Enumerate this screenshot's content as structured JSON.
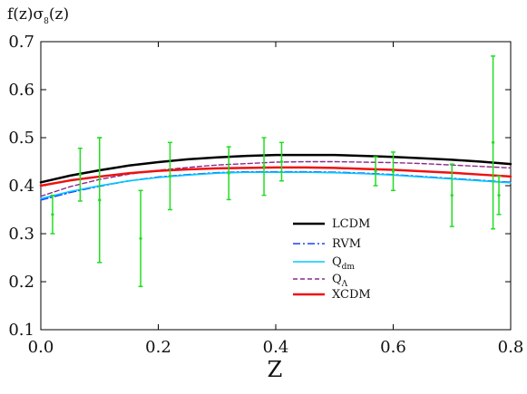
{
  "chart_data": {
    "type": "line",
    "title": "",
    "ylabel": "f(z)σ_8(z)",
    "ylabel_parts": {
      "prefix": "f(z)σ",
      "sub": "8",
      "suffix": "(z)"
    },
    "xlabel": "Z",
    "xlim": [
      0.0,
      0.8
    ],
    "ylim": [
      0.1,
      0.7
    ],
    "x_ticks": [
      "0.0",
      "0.2",
      "0.4",
      "0.6",
      "0.8"
    ],
    "y_ticks": [
      "0.1",
      "0.2",
      "0.3",
      "0.4",
      "0.5",
      "0.6",
      "0.7"
    ],
    "grid": false,
    "legend_position": "lower-center",
    "legend": [
      {
        "main": "LCDM",
        "sub": ""
      },
      {
        "main": "RVM",
        "sub": ""
      },
      {
        "main": "Q",
        "sub": "dm"
      },
      {
        "main": "Q",
        "sub": "Λ"
      },
      {
        "main": "XCDM",
        "sub": ""
      }
    ],
    "series": [
      {
        "name": "LCDM",
        "color": "#000000",
        "dash": "",
        "width": 2.5,
        "x": [
          0.0,
          0.05,
          0.1,
          0.15,
          0.2,
          0.25,
          0.3,
          0.35,
          0.4,
          0.45,
          0.5,
          0.55,
          0.6,
          0.65,
          0.7,
          0.75,
          0.8
        ],
        "y": [
          0.407,
          0.421,
          0.432,
          0.442,
          0.449,
          0.455,
          0.459,
          0.462,
          0.464,
          0.464,
          0.464,
          0.462,
          0.46,
          0.457,
          0.454,
          0.45,
          0.445
        ]
      },
      {
        "name": "RVM",
        "color": "#1f3fff",
        "dash": "8 3 2 3",
        "width": 1.6,
        "x": [
          0.0,
          0.05,
          0.1,
          0.15,
          0.2,
          0.25,
          0.3,
          0.35,
          0.4,
          0.45,
          0.5,
          0.55,
          0.6,
          0.65,
          0.7,
          0.75,
          0.8
        ],
        "y": [
          0.37,
          0.386,
          0.399,
          0.41,
          0.418,
          0.423,
          0.427,
          0.429,
          0.429,
          0.429,
          0.428,
          0.426,
          0.423,
          0.419,
          0.415,
          0.411,
          0.407
        ]
      },
      {
        "name": "Q_dm",
        "color": "#00c8ff",
        "dash": "",
        "width": 1.6,
        "x": [
          0.0,
          0.05,
          0.1,
          0.15,
          0.2,
          0.25,
          0.3,
          0.35,
          0.4,
          0.45,
          0.5,
          0.55,
          0.6,
          0.65,
          0.7,
          0.75,
          0.8
        ],
        "y": [
          0.373,
          0.388,
          0.4,
          0.41,
          0.417,
          0.422,
          0.426,
          0.428,
          0.428,
          0.428,
          0.427,
          0.425,
          0.422,
          0.418,
          0.414,
          0.41,
          0.406
        ]
      },
      {
        "name": "Q_Λ",
        "color": "#8b2a8b",
        "dash": "5 3",
        "width": 1.4,
        "x": [
          0.0,
          0.05,
          0.1,
          0.15,
          0.2,
          0.25,
          0.3,
          0.35,
          0.4,
          0.45,
          0.5,
          0.55,
          0.6,
          0.65,
          0.7,
          0.75,
          0.8
        ],
        "y": [
          0.378,
          0.398,
          0.413,
          0.424,
          0.432,
          0.438,
          0.443,
          0.446,
          0.449,
          0.45,
          0.45,
          0.449,
          0.448,
          0.446,
          0.443,
          0.44,
          0.437
        ]
      },
      {
        "name": "XCDM",
        "color": "#ee1111",
        "dash": "",
        "width": 2.5,
        "x": [
          0.0,
          0.05,
          0.1,
          0.15,
          0.2,
          0.25,
          0.3,
          0.35,
          0.4,
          0.45,
          0.5,
          0.55,
          0.6,
          0.65,
          0.7,
          0.75,
          0.8
        ],
        "y": [
          0.4,
          0.411,
          0.419,
          0.426,
          0.431,
          0.434,
          0.436,
          0.437,
          0.438,
          0.438,
          0.437,
          0.435,
          0.433,
          0.43,
          0.427,
          0.423,
          0.419
        ]
      }
    ],
    "data_points": {
      "color": "#22dd22",
      "points": [
        {
          "x": 0.02,
          "y": 0.34,
          "err": 0.04
        },
        {
          "x": 0.067,
          "y": 0.423,
          "err": 0.055
        },
        {
          "x": 0.1,
          "y": 0.37,
          "err": 0.13
        },
        {
          "x": 0.1,
          "y": 0.37,
          "err": 0.13
        },
        {
          "x": 0.17,
          "y": 0.29,
          "err": 0.1
        },
        {
          "x": 0.22,
          "y": 0.42,
          "err": 0.07
        },
        {
          "x": 0.32,
          "y": 0.426,
          "err": 0.055
        },
        {
          "x": 0.38,
          "y": 0.44,
          "err": 0.06
        },
        {
          "x": 0.41,
          "y": 0.45,
          "err": 0.04
        },
        {
          "x": 0.57,
          "y": 0.43,
          "err": 0.03
        },
        {
          "x": 0.6,
          "y": 0.43,
          "err": 0.04
        },
        {
          "x": 0.7,
          "y": 0.38,
          "err": 0.065
        },
        {
          "x": 0.77,
          "y": 0.49,
          "err": 0.18
        },
        {
          "x": 0.78,
          "y": 0.38,
          "err": 0.04
        }
      ]
    }
  }
}
